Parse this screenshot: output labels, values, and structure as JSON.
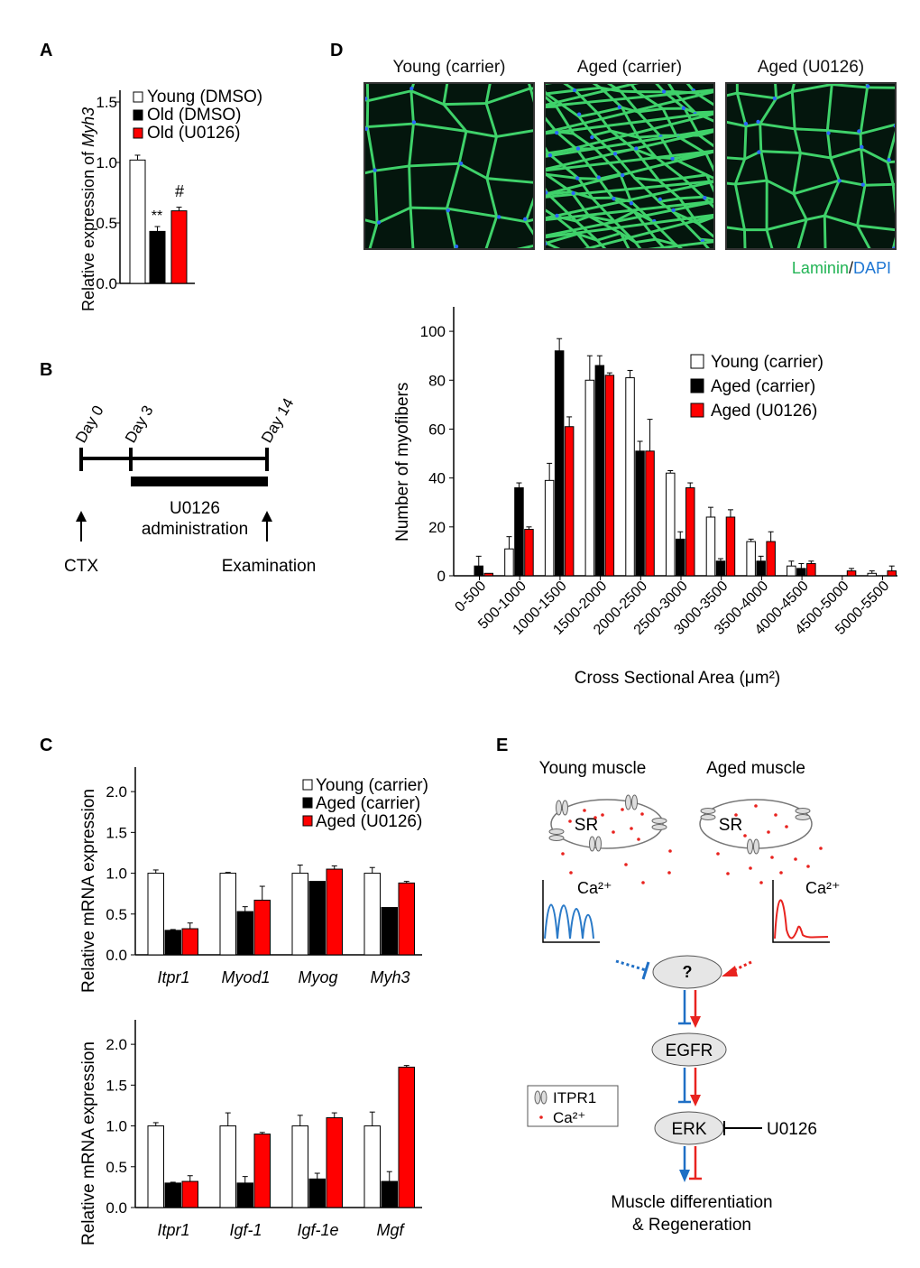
{
  "panel_labels": {
    "a": "A",
    "b": "B",
    "c": "C",
    "d": "D",
    "e": "E"
  },
  "colors": {
    "young": "#ffffff",
    "old": "#000000",
    "treated": "#ff0000",
    "laminin": "#22c55e",
    "dapi": "#1f77d4",
    "inhibit_blue": "#1f6fc5",
    "promote_red": "#e8231f"
  },
  "panel_a": {
    "ylabel_prefix": "Relative expression of ",
    "ylabel_gene": "Myh3",
    "ticks": [
      "0.0",
      "0.5",
      "1.0",
      "1.5"
    ],
    "legend": [
      "Young (DMSO)",
      "Old (DMSO)",
      "Old (U0126)"
    ],
    "sig": [
      "**",
      "#"
    ]
  },
  "panel_b": {
    "days": [
      "Day 0",
      "Day 3",
      "Day 14"
    ],
    "drug_line1": "U0126",
    "drug_line2": "administration",
    "start_label": "CTX",
    "end_label": "Examination"
  },
  "panel_c": {
    "ylabel": "Relative  mRNA expression",
    "ticks": [
      "0.0",
      "0.5",
      "1.0",
      "1.5",
      "2.0"
    ],
    "legend": [
      "Young (carrier)",
      "Aged (carrier)",
      "Aged (U0126)"
    ]
  },
  "panel_d": {
    "titles": [
      "Young (carrier)",
      "Aged (carrier)",
      "Aged (U0126)"
    ],
    "stain_a": "Laminin",
    "stain_sep": "/",
    "stain_b": "DAPI",
    "ylabel": "Number  of myofibers",
    "xlabel": "Cross Sectional Area (μm²)",
    "ticks": [
      "0",
      "20",
      "40",
      "60",
      "80",
      "100"
    ],
    "legend": [
      "Young (carrier)",
      "Aged (carrier)",
      "Aged (U0126)"
    ]
  },
  "panel_e": {
    "young_title": "Young muscle",
    "aged_title": "Aged muscle",
    "sr": "SR",
    "ca": "Ca²⁺",
    "question": "?",
    "egfr": "EGFR",
    "erk": "ERK",
    "inhibitor": "U0126",
    "legend_receptor": "ITPR1",
    "legend_ca": "Ca²⁺",
    "outcome_line1": "Muscle differentiation",
    "outcome_line2": "& Regeneration"
  },
  "chart_data": [
    {
      "panel": "A",
      "type": "bar",
      "title": "",
      "ylabel": "Relative expression of Myh3",
      "ylim": [
        0,
        1.5
      ],
      "categories": [
        "Young (DMSO)",
        "Old (DMSO)",
        "Old (U0126)"
      ],
      "values": [
        1.02,
        0.43,
        0.6
      ],
      "errors": [
        0.04,
        0.04,
        0.03
      ]
    },
    {
      "panel": "C-top",
      "type": "bar",
      "ylabel": "Relative  mRNA expression",
      "ylim": [
        0,
        2.3
      ],
      "categories": [
        "Itpr1",
        "Myod1",
        "Myog",
        "Myh3"
      ],
      "series": [
        {
          "name": "Young (carrier)",
          "values": [
            1.0,
            1.0,
            1.0,
            1.0
          ],
          "errors": [
            0.04,
            0.01,
            0.1,
            0.07
          ]
        },
        {
          "name": "Aged (carrier)",
          "values": [
            0.3,
            0.53,
            0.9,
            0.58
          ],
          "errors": [
            0.01,
            0.06,
            0.0,
            0.0
          ]
        },
        {
          "name": "Aged (U0126)",
          "values": [
            0.32,
            0.67,
            1.05,
            0.88
          ],
          "errors": [
            0.07,
            0.17,
            0.04,
            0.02
          ]
        }
      ]
    },
    {
      "panel": "C-bottom",
      "type": "bar",
      "ylabel": "Relative  mRNA expression",
      "ylim": [
        0,
        2.3
      ],
      "categories": [
        "Itpr1",
        "Igf-1",
        "Igf-1e",
        "Mgf"
      ],
      "series": [
        {
          "name": "Young (carrier)",
          "values": [
            1.0,
            1.0,
            1.0,
            1.0
          ],
          "errors": [
            0.04,
            0.16,
            0.13,
            0.17
          ]
        },
        {
          "name": "Aged (carrier)",
          "values": [
            0.3,
            0.3,
            0.35,
            0.32
          ],
          "errors": [
            0.01,
            0.08,
            0.07,
            0.12
          ]
        },
        {
          "name": "Aged (U0126)",
          "values": [
            0.32,
            0.9,
            1.1,
            1.72
          ],
          "errors": [
            0.07,
            0.02,
            0.06,
            0.02
          ]
        }
      ]
    },
    {
      "panel": "D",
      "type": "bar",
      "xlabel": "Cross Sectional Area (μm²)",
      "ylabel": "Number  of myofibers",
      "ylim": [
        0,
        110
      ],
      "categories": [
        "0-500",
        "500-1000",
        "1000-1500",
        "1500-2000",
        "2000-2500",
        "2500-3000",
        "3000-3500",
        "3500-4000",
        "4000-4500",
        "4500-5000",
        "5000-5500"
      ],
      "series": [
        {
          "name": "Young (carrier)",
          "values": [
            0,
            11,
            39,
            80,
            81,
            42,
            24,
            14,
            4,
            0,
            1
          ],
          "errors": [
            0,
            5,
            7,
            10,
            3,
            1,
            4,
            1,
            2,
            0,
            1
          ]
        },
        {
          "name": "Aged (carrier)",
          "values": [
            4,
            36,
            92,
            86,
            51,
            15,
            6,
            6,
            3,
            0,
            0
          ],
          "errors": [
            4,
            2,
            5,
            4,
            4,
            3,
            1,
            2,
            2,
            0,
            0
          ]
        },
        {
          "name": "Aged (U0126)",
          "values": [
            1,
            19,
            61,
            82,
            51,
            36,
            24,
            14,
            5,
            2,
            2
          ],
          "errors": [
            0,
            1,
            4,
            1,
            13,
            2,
            3,
            4,
            1,
            1,
            2
          ]
        }
      ]
    }
  ]
}
